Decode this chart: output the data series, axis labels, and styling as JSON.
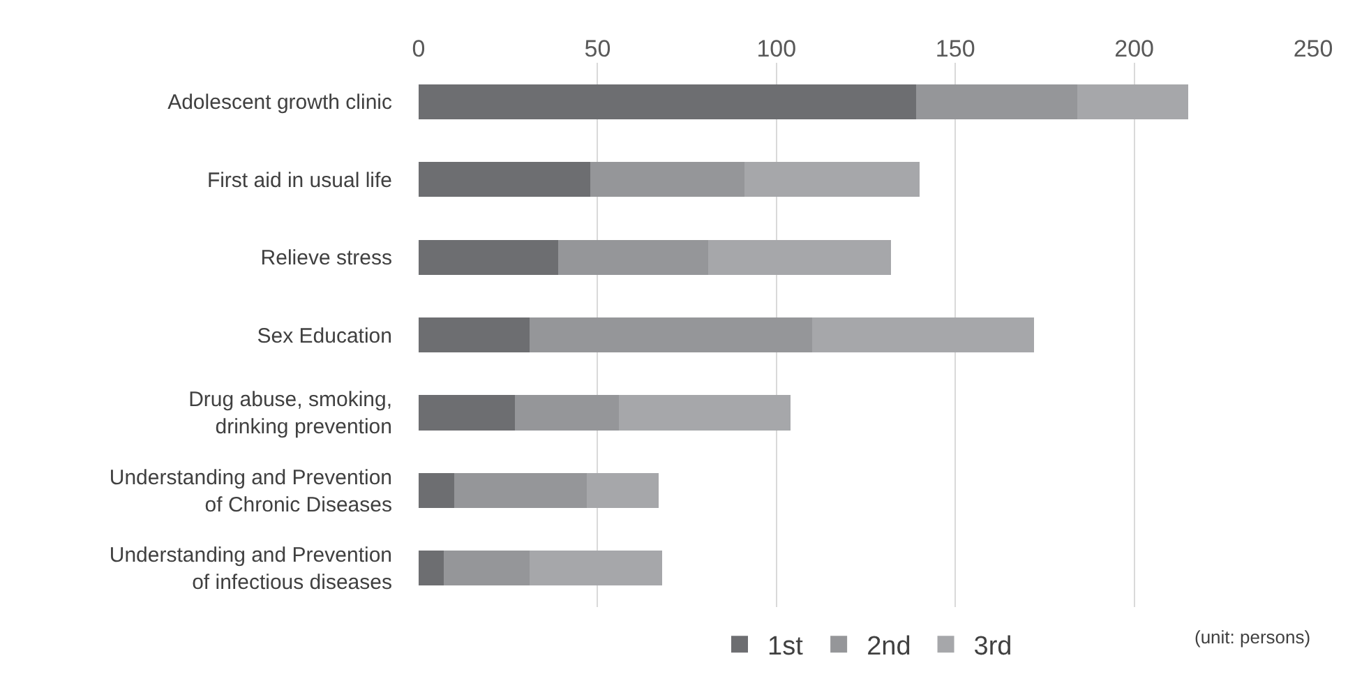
{
  "chart_data": {
    "type": "bar",
    "orientation": "horizontal",
    "stacked": true,
    "categories": [
      "Adolescent growth clinic",
      "First aid in usual life",
      "Relieve stress",
      "Sex Education",
      "Drug abuse, smoking,\ndrinking prevention",
      "Understanding and Prevention\nof Chronic Diseases",
      "Understanding and Prevention\nof infectious diseases"
    ],
    "series": [
      {
        "name": "1st",
        "color": "#6d6e71",
        "values": [
          139,
          48,
          39,
          31,
          27,
          10,
          7
        ]
      },
      {
        "name": "2nd",
        "color": "#959699",
        "values": [
          45,
          43,
          42,
          79,
          29,
          37,
          24
        ]
      },
      {
        "name": "3rd",
        "color": "#a6a7aa",
        "values": [
          31,
          49,
          51,
          62,
          48,
          20,
          37
        ]
      }
    ],
    "xlim": [
      0,
      250
    ],
    "xticks": [
      0,
      50,
      100,
      150,
      200,
      250
    ],
    "grid": "x",
    "legend": "bottom",
    "annotations": [
      "(unit: persons)"
    ]
  }
}
